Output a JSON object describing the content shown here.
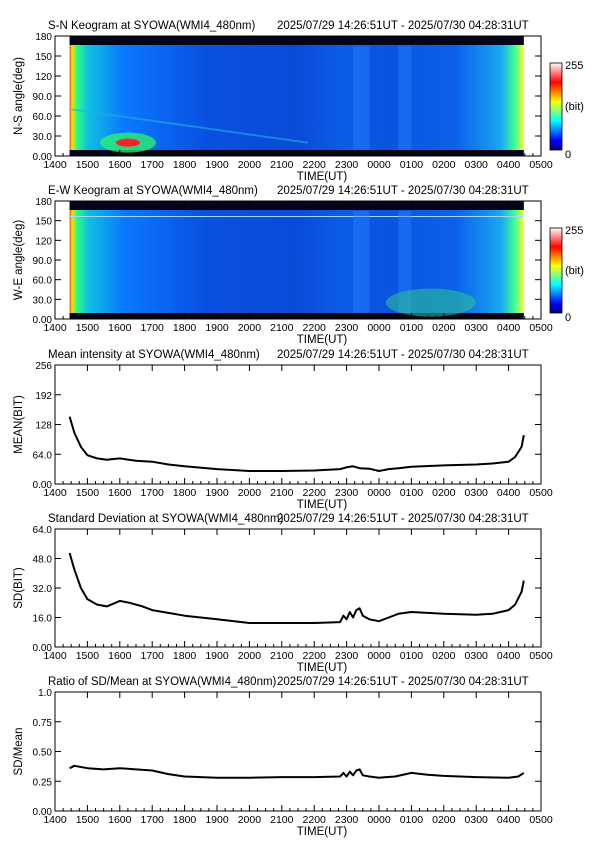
{
  "chart_data": [
    {
      "type": "heatmap",
      "title": "S-N Keogram at SYOWA(WMI4_480nm)",
      "time_range": "2025/07/29 14:26:51UT - 2025/07/30 04:28:31UT",
      "xlabel": "TIME(UT)",
      "ylabel": "N-S angle(deg)",
      "x_ticks": [
        "1400",
        "1500",
        "1600",
        "1700",
        "1800",
        "1900",
        "2000",
        "2100",
        "2200",
        "2300",
        "0000",
        "0100",
        "0200",
        "0300",
        "0400",
        "0500"
      ],
      "y_ticks": [
        "0.00",
        "30.0",
        "60.0",
        "90.0",
        "120",
        "150",
        "180"
      ],
      "ylim": [
        0,
        180
      ],
      "colorbar": {
        "min_label": "0",
        "max_label": "255",
        "unit_label": "(bit)"
      },
      "colorscale": [
        "#00007f",
        "#0000ff",
        "#0080ff",
        "#00ffff",
        "#80ff80",
        "#ffff00",
        "#ff8000",
        "#ff0000",
        "#ff8080",
        "#ffffff"
      ]
    },
    {
      "type": "heatmap",
      "title": "E-W Keogram at SYOWA(WMI4_480nm)",
      "time_range": "2025/07/29 14:26:51UT - 2025/07/30 04:28:31UT",
      "xlabel": "TIME(UT)",
      "ylabel": "W-E angle(deg)",
      "x_ticks": [
        "1400",
        "1500",
        "1600",
        "1700",
        "1800",
        "1900",
        "2000",
        "2100",
        "2200",
        "2300",
        "0000",
        "0100",
        "0200",
        "0300",
        "0400",
        "0500"
      ],
      "y_ticks": [
        "0.00",
        "30.0",
        "60.0",
        "90.0",
        "120",
        "150",
        "180"
      ],
      "ylim": [
        0,
        180
      ],
      "colorbar": {
        "min_label": "0",
        "max_label": "255",
        "unit_label": "(bit)"
      }
    },
    {
      "type": "line",
      "title": "Mean intensity at SYOWA(WMI4_480nm)",
      "time_range": "2025/07/29 14:26:51UT - 2025/07/30 04:28:31UT",
      "xlabel": "TIME(UT)",
      "ylabel": "MEAN(BIT)",
      "x_ticks": [
        "1400",
        "1500",
        "1600",
        "1700",
        "1800",
        "1900",
        "2000",
        "2100",
        "2200",
        "2300",
        "0000",
        "0100",
        "0200",
        "0300",
        "0400",
        "0500"
      ],
      "y_ticks": [
        "0.00",
        "64.0",
        "128",
        "192",
        "256"
      ],
      "ylim": [
        0,
        256
      ],
      "x": [
        14.45,
        14.6,
        14.8,
        15.0,
        15.3,
        15.6,
        16.0,
        16.5,
        17.0,
        17.5,
        18.0,
        19.0,
        20.0,
        21.0,
        22.0,
        22.8,
        23.0,
        23.2,
        23.4,
        23.7,
        24.0,
        24.3,
        24.6,
        25.0,
        26.0,
        27.0,
        27.5,
        28.0,
        28.2,
        28.4,
        28.47
      ],
      "values": [
        145,
        110,
        80,
        62,
        55,
        52,
        55,
        50,
        48,
        42,
        38,
        32,
        28,
        28,
        29,
        32,
        36,
        38,
        34,
        33,
        28,
        32,
        34,
        37,
        40,
        42,
        44,
        48,
        58,
        80,
        105
      ]
    },
    {
      "type": "line",
      "title": "Standard Deviation at SYOWA(WMI4_480nm)",
      "time_range": "2025/07/29 14:26:51UT - 2025/07/30 04:28:31UT",
      "xlabel": "TIME(UT)",
      "ylabel": "SD(BIT)",
      "x_ticks": [
        "1400",
        "1500",
        "1600",
        "1700",
        "1800",
        "1900",
        "2000",
        "2100",
        "2200",
        "2300",
        "0000",
        "0100",
        "0200",
        "0300",
        "0400",
        "0500"
      ],
      "y_ticks": [
        "0.00",
        "16.0",
        "32.0",
        "48.0",
        "64.0"
      ],
      "ylim": [
        0,
        64
      ],
      "x": [
        14.45,
        14.6,
        14.8,
        15.0,
        15.3,
        15.6,
        15.8,
        16.0,
        16.3,
        16.7,
        17.0,
        17.5,
        18.0,
        19.0,
        20.0,
        21.0,
        22.0,
        22.8,
        22.9,
        23.0,
        23.1,
        23.2,
        23.3,
        23.4,
        23.5,
        23.7,
        24.0,
        24.3,
        24.6,
        25.0,
        25.5,
        26.0,
        27.0,
        27.5,
        28.0,
        28.2,
        28.4,
        28.47
      ],
      "values": [
        51,
        42,
        32,
        26,
        23,
        22,
        23.5,
        25,
        24,
        22,
        20,
        18.5,
        17,
        15,
        13,
        13,
        13,
        13.5,
        17,
        15,
        19,
        16,
        20,
        21,
        17,
        15,
        14,
        16,
        18,
        19,
        18.5,
        18,
        17.5,
        18,
        20,
        23,
        30,
        36
      ]
    },
    {
      "type": "line",
      "title": "Ratio of SD/Mean at SYOWA(WMI4_480nm)",
      "time_range": "2025/07/29 14:26:51UT - 2025/07/30 04:28:31UT",
      "xlabel": "TIME(UT)",
      "ylabel": "SD/Mean",
      "x_ticks": [
        "1400",
        "1500",
        "1600",
        "1700",
        "1800",
        "1900",
        "2000",
        "2100",
        "2200",
        "2300",
        "0000",
        "0100",
        "0200",
        "0300",
        "0400",
        "0500"
      ],
      "y_ticks": [
        "0.00",
        "0.25",
        "0.50",
        "0.75",
        "1.0"
      ],
      "ylim": [
        0,
        1
      ],
      "x": [
        14.45,
        14.6,
        15.0,
        15.5,
        16.0,
        16.5,
        17.0,
        17.5,
        18.0,
        19.0,
        20.0,
        21.0,
        22.0,
        22.8,
        22.9,
        23.0,
        23.1,
        23.2,
        23.3,
        23.4,
        23.5,
        23.7,
        24.0,
        24.5,
        25.0,
        25.5,
        26.0,
        27.0,
        28.0,
        28.3,
        28.47
      ],
      "values": [
        0.36,
        0.38,
        0.36,
        0.35,
        0.36,
        0.35,
        0.34,
        0.31,
        0.29,
        0.28,
        0.28,
        0.285,
        0.285,
        0.29,
        0.32,
        0.29,
        0.33,
        0.3,
        0.34,
        0.35,
        0.3,
        0.29,
        0.28,
        0.29,
        0.32,
        0.305,
        0.295,
        0.285,
        0.28,
        0.29,
        0.32
      ]
    }
  ]
}
